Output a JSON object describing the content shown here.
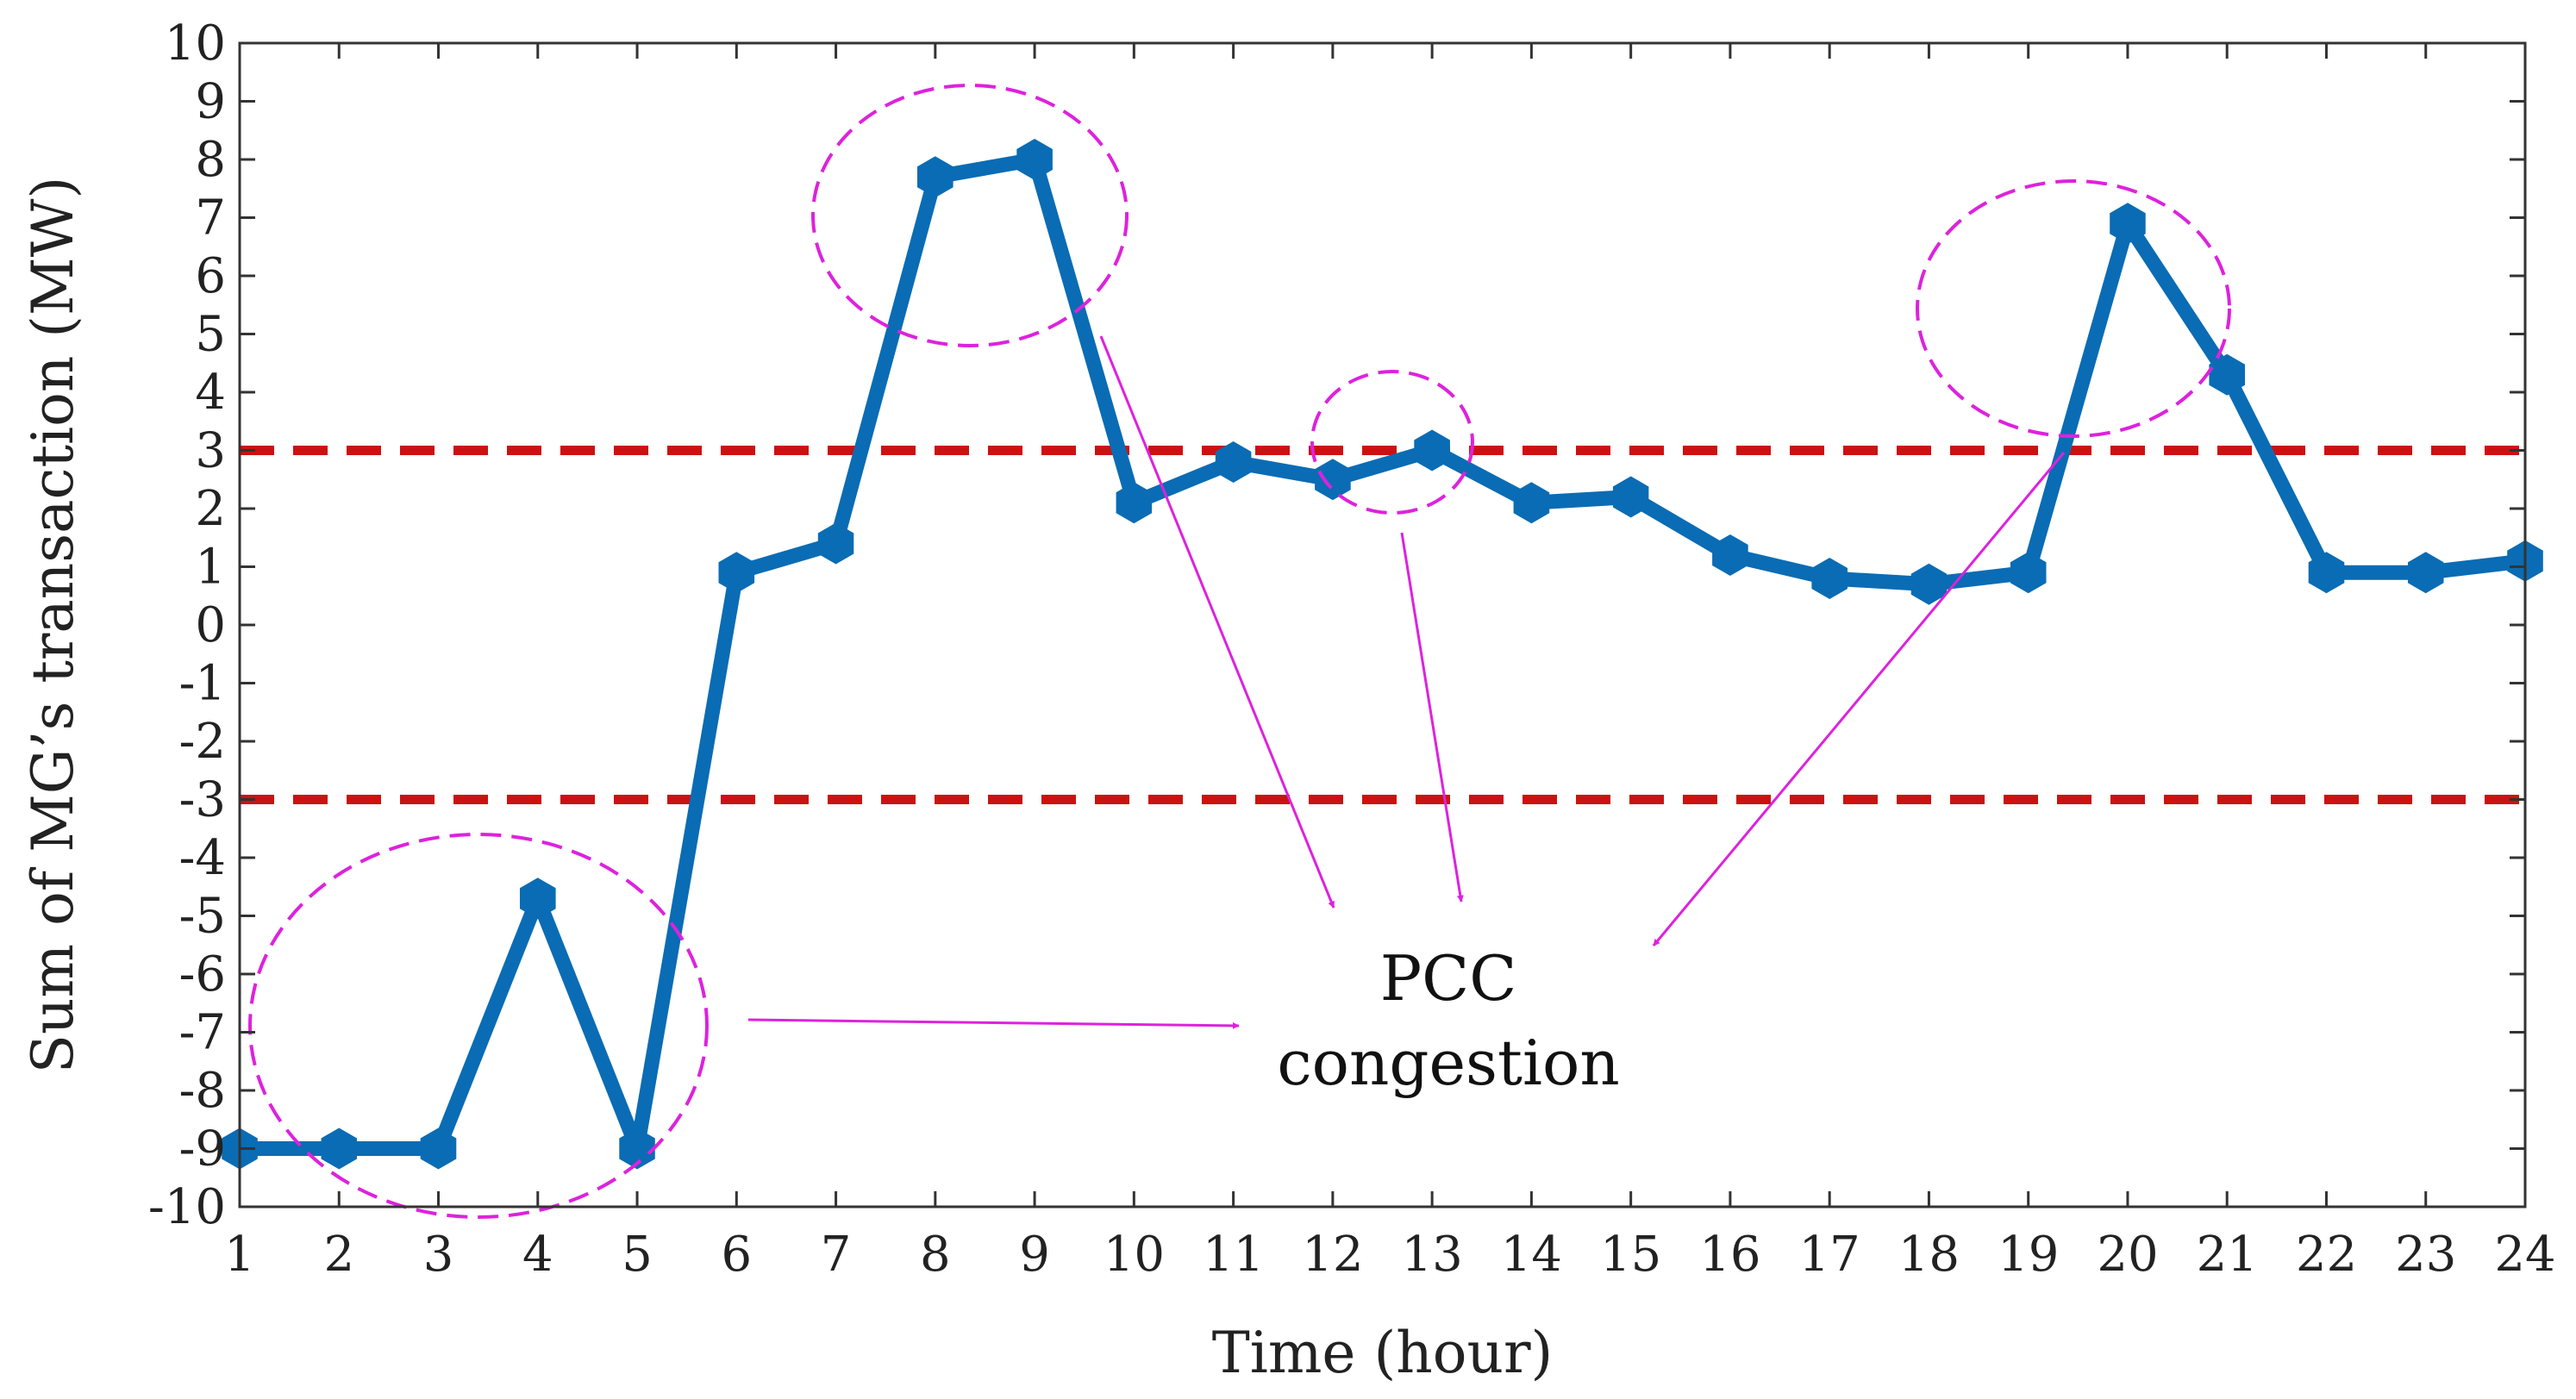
{
  "chart_data": {
    "type": "line",
    "title": "",
    "xlabel": "Time (hour)",
    "ylabel": "Sum of MG’s transaction (MW)",
    "xlim": [
      1,
      24
    ],
    "ylim": [
      -10,
      10
    ],
    "x_ticks": [
      "1",
      "2",
      "3",
      "4",
      "5",
      "6",
      "7",
      "8",
      "9",
      "10",
      "11",
      "12",
      "13",
      "14",
      "15",
      "16",
      "17",
      "18",
      "19",
      "20",
      "21",
      "22",
      "23",
      "24"
    ],
    "y_ticks": [
      "10",
      "9",
      "8",
      "7",
      "6",
      "5",
      "4",
      "3",
      "2",
      "1",
      "0",
      "-1",
      "-2",
      "-3",
      "-4",
      "-5",
      "-6",
      "-7",
      "-8",
      "-9",
      "-10"
    ],
    "series": [
      {
        "name": "Sum of MG's transaction",
        "color": "#0a6cb4",
        "x": [
          1,
          2,
          3,
          4,
          5,
          6,
          7,
          8,
          9,
          10,
          11,
          12,
          13,
          14,
          15,
          16,
          17,
          18,
          19,
          20,
          21,
          22,
          23,
          24
        ],
        "values": [
          -9,
          -9,
          -9,
          -4.7,
          -9,
          0.9,
          1.4,
          7.7,
          8,
          2.1,
          2.8,
          2.5,
          3,
          2.1,
          2.2,
          1.2,
          0.8,
          0.7,
          0.9,
          6.9,
          4.3,
          0.9,
          0.9,
          1.1
        ]
      }
    ],
    "limits": [
      {
        "value": 3,
        "color": "#cc1111",
        "style": "dashed"
      },
      {
        "value": -3,
        "color": "#cc1111",
        "style": "dashed"
      }
    ],
    "annotation": {
      "line1": "PCC",
      "line2": "congestion",
      "color": "#dd22dd",
      "circled_hours": [
        [
          1,
          5
        ],
        [
          8,
          9
        ],
        [
          12,
          13
        ],
        [
          20,
          21
        ]
      ]
    }
  }
}
